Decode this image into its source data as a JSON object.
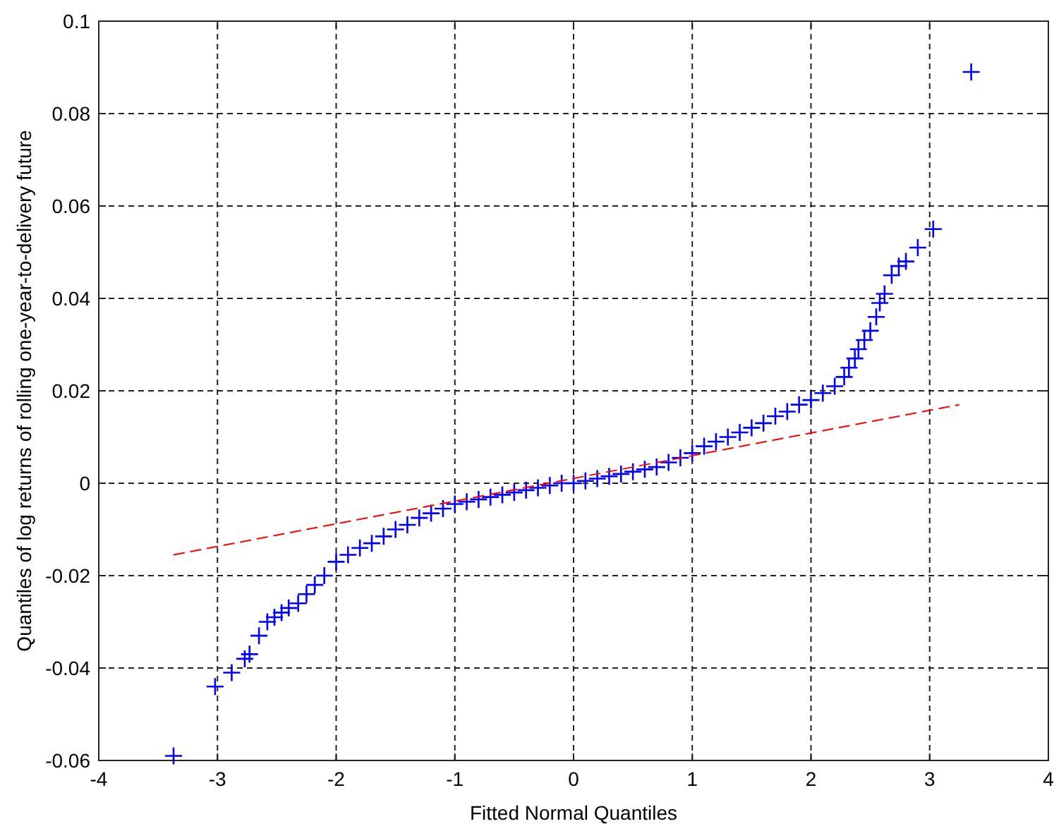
{
  "chart_data": {
    "type": "scatter",
    "xlabel": "Fitted Normal Quantiles",
    "ylabel": "Quantiles of log returns of rolling one-year-to-delivery future",
    "xlim": [
      -4,
      4
    ],
    "ylim": [
      -0.06,
      0.1
    ],
    "xticks": [
      -4,
      -3,
      -2,
      -1,
      0,
      1,
      2,
      3,
      4
    ],
    "yticks": [
      -0.06,
      -0.04,
      -0.02,
      0,
      0.02,
      0.04,
      0.06,
      0.08,
      0.1
    ],
    "grid": true,
    "series": [
      {
        "marker": "cross",
        "color": "#0000ff",
        "x": [
          -3.37,
          -3.02,
          -2.88,
          -2.77,
          -2.73,
          -2.65,
          -2.58,
          -2.52,
          -2.46,
          -2.4,
          -2.32,
          -2.25,
          -2.18,
          -2.1,
          -2.0,
          -1.9,
          -1.8,
          -1.7,
          -1.6,
          -1.5,
          -1.4,
          -1.3,
          -1.2,
          -1.1,
          -1.0,
          -0.9,
          -0.8,
          -0.7,
          -0.6,
          -0.5,
          -0.4,
          -0.3,
          -0.2,
          -0.1,
          0.0,
          0.1,
          0.2,
          0.3,
          0.4,
          0.5,
          0.6,
          0.7,
          0.8,
          0.9,
          1.0,
          1.1,
          1.2,
          1.3,
          1.4,
          1.5,
          1.6,
          1.7,
          1.8,
          1.9,
          2.0,
          2.1,
          2.2,
          2.28,
          2.32,
          2.37,
          2.4,
          2.45,
          2.5,
          2.55,
          2.58,
          2.62,
          2.68,
          2.74,
          2.8,
          2.9,
          3.03,
          3.35
        ],
        "values": [
          -0.059,
          -0.044,
          -0.041,
          -0.038,
          -0.037,
          -0.033,
          -0.03,
          -0.029,
          -0.028,
          -0.027,
          -0.026,
          -0.024,
          -0.022,
          -0.02,
          -0.017,
          -0.0155,
          -0.014,
          -0.013,
          -0.0115,
          -0.01,
          -0.009,
          -0.0075,
          -0.0065,
          -0.0055,
          -0.0045,
          -0.004,
          -0.0035,
          -0.003,
          -0.0025,
          -0.002,
          -0.0015,
          -0.001,
          -0.0005,
          0.0,
          0.0,
          0.0005,
          0.001,
          0.0015,
          0.002,
          0.0025,
          0.003,
          0.0035,
          0.0045,
          0.0055,
          0.0065,
          0.008,
          0.009,
          0.01,
          0.011,
          0.012,
          0.013,
          0.0145,
          0.0155,
          0.017,
          0.018,
          0.0195,
          0.021,
          0.023,
          0.025,
          0.027,
          0.029,
          0.031,
          0.033,
          0.036,
          0.039,
          0.041,
          0.045,
          0.047,
          0.048,
          0.051,
          0.055,
          0.089
        ]
      },
      {
        "type": "line",
        "line_style": "dashed",
        "color": "#ff0000",
        "x": [
          -3.37,
          3.25
        ],
        "values": [
          -0.0155,
          0.017
        ]
      }
    ]
  }
}
